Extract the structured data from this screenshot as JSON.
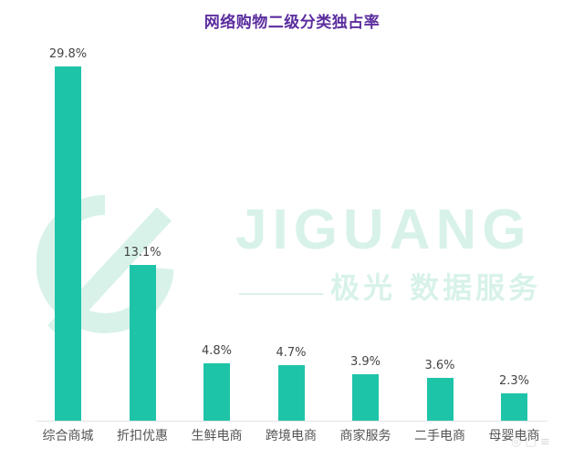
{
  "chart_data": {
    "type": "bar",
    "title": "网络购物二级分类独占率",
    "categories": [
      "综合商城",
      "折扣优惠",
      "生鲜电商",
      "跨境电商",
      "商家服务",
      "二手电商",
      "母婴电商"
    ],
    "values": [
      29.8,
      13.1,
      4.8,
      4.7,
      3.9,
      3.6,
      2.3
    ],
    "value_labels": [
      "29.8%",
      "13.1%",
      "4.8%",
      "4.7%",
      "3.9%",
      "3.6%",
      "2.3%"
    ],
    "xlabel": "",
    "ylabel": "",
    "ylim": [
      0,
      30
    ],
    "grid": false,
    "legend": null,
    "unit": "%"
  },
  "colors": {
    "bar": "#1ec4a8",
    "title": "#5b2d9e",
    "watermark": "#d8f2ea"
  },
  "watermark": {
    "brand": "JIGUANG",
    "subtitle": "极光 数据服务"
  }
}
